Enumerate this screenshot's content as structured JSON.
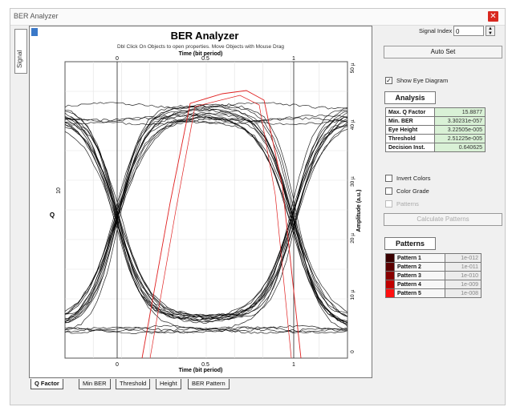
{
  "window": {
    "title": "BER Analyzer"
  },
  "side_tab": {
    "label": "Signal"
  },
  "plot": {
    "title": "BER Analyzer",
    "hint": "Dbl Click On Objects to open properties.  Move Objects with Mouse Drag",
    "top_axis_label": "Time (bit period)",
    "bottom_axis_label": "Time (bit period)",
    "left_axis_label": "Q",
    "right_axis_label": "Amplitude (a.u.)",
    "top_ticks": [
      "0",
      "0.5",
      "1"
    ],
    "bottom_ticks": [
      "0",
      "0.5",
      "1"
    ],
    "left_ticks": [
      "10"
    ],
    "right_ticks": [
      "50 µ",
      "40 µ",
      "30 µ",
      "20 µ",
      "10 µ",
      "0"
    ]
  },
  "bottom_tabs": [
    "Q Factor",
    "Min BER",
    "Threshold",
    "Height",
    "BER Pattern"
  ],
  "controls": {
    "signal_index_label": "Signal Index",
    "signal_index_value": "0",
    "auto_set_label": "Auto Set",
    "show_eye_label": "Show Eye Diagram",
    "show_eye_checked": true,
    "invert_colors_label": "Invert Colors",
    "color_grade_label": "Color Grade",
    "patterns_label": "Patterns",
    "calculate_patterns_label": "Calculate Patterns"
  },
  "analysis": {
    "tab_label": "Analysis",
    "rows": [
      {
        "key": "Max. Q Factor",
        "value": "15.8877"
      },
      {
        "key": "Min. BER",
        "value": "3.30231e-057"
      },
      {
        "key": "Eye Height",
        "value": "3.22505e-005"
      },
      {
        "key": "Threshold",
        "value": "2.51225e-005"
      },
      {
        "key": "Decision Inst.",
        "value": "0.640625"
      }
    ]
  },
  "patterns": {
    "tab_label": "Patterns",
    "rows": [
      {
        "name": "Pattern 1",
        "value": "1e-012",
        "color": "#3a0000"
      },
      {
        "name": "Pattern 2",
        "value": "1e-011",
        "color": "#5c0000"
      },
      {
        "name": "Pattern 3",
        "value": "1e-010",
        "color": "#880000"
      },
      {
        "name": "Pattern 4",
        "value": "1e-009",
        "color": "#c00000"
      },
      {
        "name": "Pattern 5",
        "value": "1e-008",
        "color": "#ff1010"
      }
    ]
  },
  "colors": {
    "close_button": "#d9281f",
    "analysis_value_bg": "#d9f1d6",
    "q_curve": "#e02020",
    "eye_traces": "#000000"
  }
}
